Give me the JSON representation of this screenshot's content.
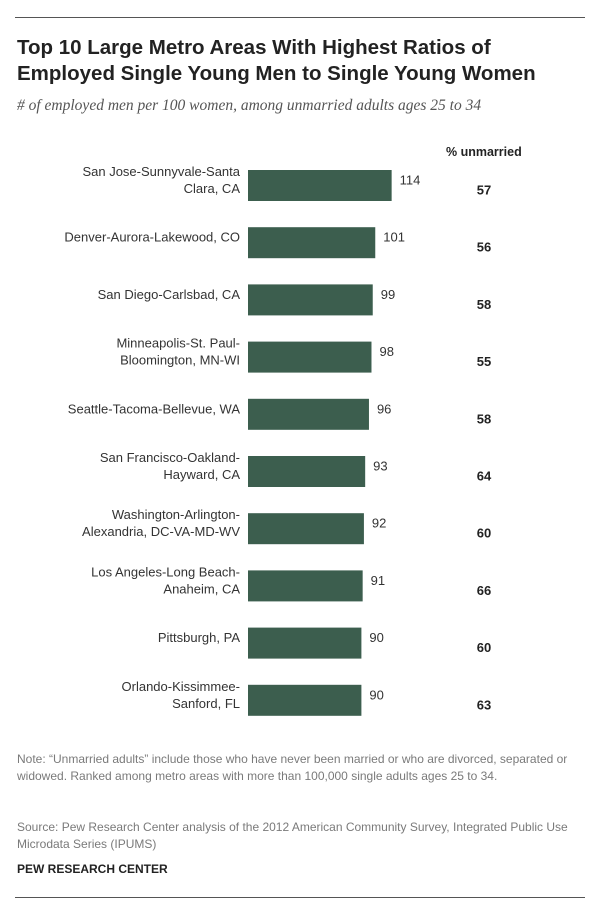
{
  "title": "Top 10 Large Metro Areas With Highest Ratios of Employed Single Young Men to Single Young Women",
  "subtitle": "# of employed men per 100 women, among unmarried adults ages 25 to 34",
  "column_header": "% unmarried",
  "note": "Note: “Unmarried adults” include those who have never been married or who are divorced, separated or widowed. Ranked among metro areas with more than 100,000 single adults ages 25 to 34.",
  "source": "Source: Pew Research Center analysis of the 2012 American Community Survey, Integrated Public Use Microdata Series (IPUMS)",
  "brand": "PEW RESEARCH CENTER",
  "colors": {
    "bar": "#3c5e4e"
  },
  "chart_data": {
    "type": "bar",
    "orientation": "horizontal",
    "categories": [
      [
        "San Jose-Sunnyvale-Santa",
        "Clara, CA"
      ],
      [
        "Denver-Aurora-Lakewood, CO"
      ],
      [
        "San Diego-Carlsbad, CA"
      ],
      [
        "Minneapolis-St. Paul-",
        "Bloomington, MN-WI"
      ],
      [
        "Seattle-Tacoma-Bellevue, WA"
      ],
      [
        "San Francisco-Oakland-",
        "Hayward, CA"
      ],
      [
        "Washington-Arlington-",
        "Alexandria, DC-VA-MD-WV"
      ],
      [
        "Los Angeles-Long Beach-",
        "Anaheim, CA"
      ],
      [
        "Pittsburgh, PA"
      ],
      [
        "Orlando-Kissimmee-",
        "Sanford, FL"
      ]
    ],
    "values": [
      114,
      101,
      99,
      98,
      96,
      93,
      92,
      91,
      90,
      90
    ],
    "percent_unmarried": [
      57,
      56,
      58,
      55,
      58,
      64,
      60,
      66,
      60,
      63
    ]
  }
}
